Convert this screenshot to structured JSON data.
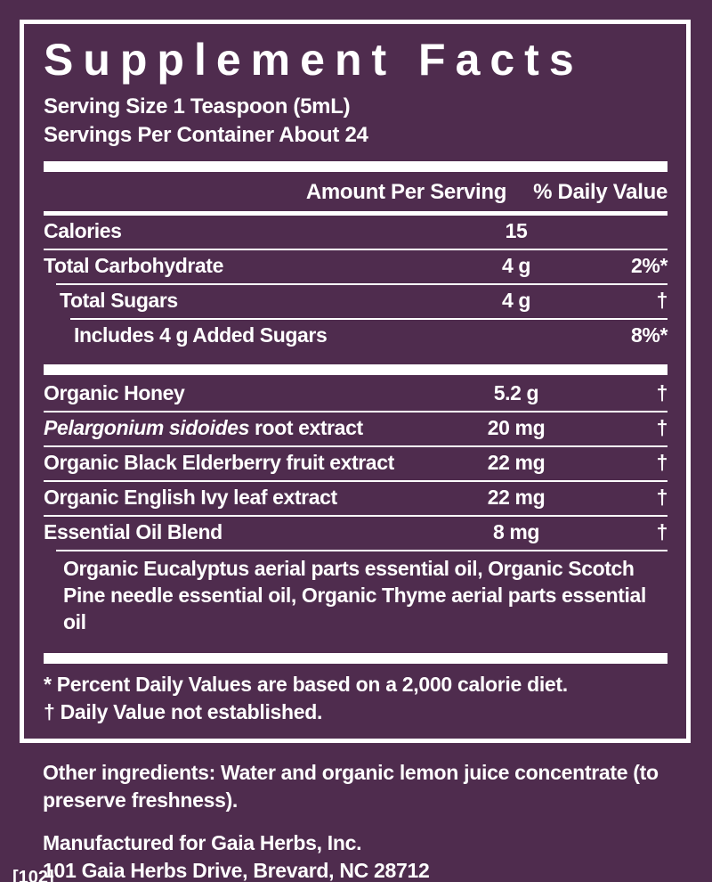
{
  "colors": {
    "background": "#4f2c4e",
    "text": "#ffffff",
    "rule": "#ffffff"
  },
  "panel": {
    "title": "Supplement Facts",
    "serving_size": "Serving Size 1 Teaspoon (5mL)",
    "servings_per_container": "Servings Per Container About 24",
    "columns": {
      "amount": "Amount Per Serving",
      "daily_value": "% Daily Value"
    },
    "nutrient_rows": [
      {
        "name": "Calories",
        "amount": "15",
        "dv": ""
      },
      {
        "name": "Total Carbohydrate",
        "amount": "4 g",
        "dv": "2%*"
      },
      {
        "name": "Total Sugars",
        "amount": "4 g",
        "dv": "†"
      },
      {
        "name": "Includes 4 g Added Sugars",
        "amount": "",
        "dv": "8%*"
      }
    ],
    "ingredient_rows": [
      {
        "name": "Organic Honey",
        "amount": "5.2 g",
        "dv": "†"
      },
      {
        "name_italic": "Pelargonium sidoides",
        "name": " root extract",
        "amount": "20 mg",
        "dv": "†"
      },
      {
        "name": "Organic Black Elderberry fruit extract",
        "amount": "22 mg",
        "dv": "†"
      },
      {
        "name": "Organic English Ivy leaf extract",
        "amount": "22 mg",
        "dv": "†"
      },
      {
        "name": "Essential Oil Blend",
        "amount": "8 mg",
        "dv": "†"
      }
    ],
    "essential_oil_note": "Organic Eucalyptus aerial parts essential oil, Organic Scotch Pine needle essential oil, Organic Thyme aerial parts essential oil",
    "footnotes": [
      "* Percent Daily Values are based on a 2,000 calorie diet.",
      "† Daily Value not established."
    ]
  },
  "footer": {
    "other_ingredients": "Other ingredients: Water and organic lemon juice concentrate (to preserve freshness).",
    "manufactured_for": "Manufactured for Gaia Herbs, Inc.",
    "address": "101 Gaia Herbs Drive, Brevard, NC 28712",
    "code": "[102]"
  }
}
